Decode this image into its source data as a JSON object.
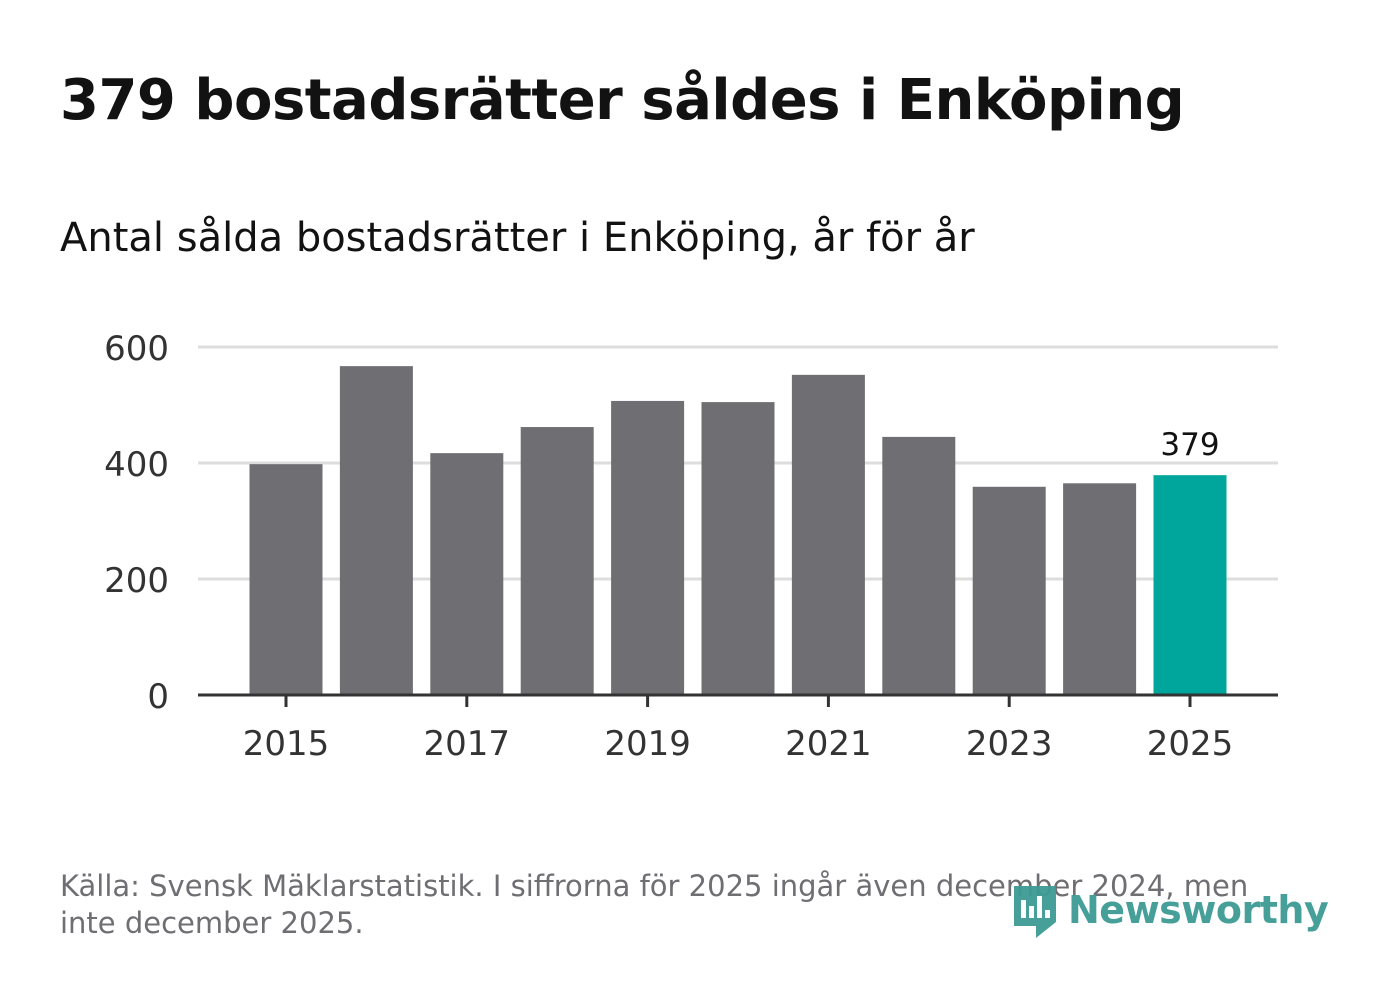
{
  "title": "379 bostadsrätter såldes i Enköping",
  "subtitle": "Antal sålda bostadsrätter i Enköping, år för år",
  "source": "Källa: Svensk Mäklarstatistik. I siffrorna för 2025 ingår även december 2024, men inte december 2025.",
  "logo": {
    "name": "Newsworthy",
    "icon": "newsworthy-logo-icon"
  },
  "colors": {
    "bar": "#6f6e73",
    "highlight": "#00a59b",
    "grid": "#dddddd",
    "axis": "#333333",
    "logo": "#3d9b94"
  },
  "chart_data": {
    "type": "bar",
    "title": "Antal sålda bostadsrätter i Enköping, år för år",
    "xlabel": "",
    "ylabel": "",
    "categories": [
      2015,
      2016,
      2017,
      2018,
      2019,
      2020,
      2021,
      2022,
      2023,
      2024,
      2025
    ],
    "values": [
      398,
      567,
      417,
      462,
      507,
      505,
      552,
      445,
      359,
      365,
      379
    ],
    "highlight_index": 10,
    "highlight_label": "379",
    "ylim": [
      0,
      600
    ],
    "yticks": [
      0,
      200,
      400,
      600
    ],
    "xticks": [
      2015,
      2017,
      2019,
      2021,
      2023,
      2025
    ],
    "grid": true
  }
}
